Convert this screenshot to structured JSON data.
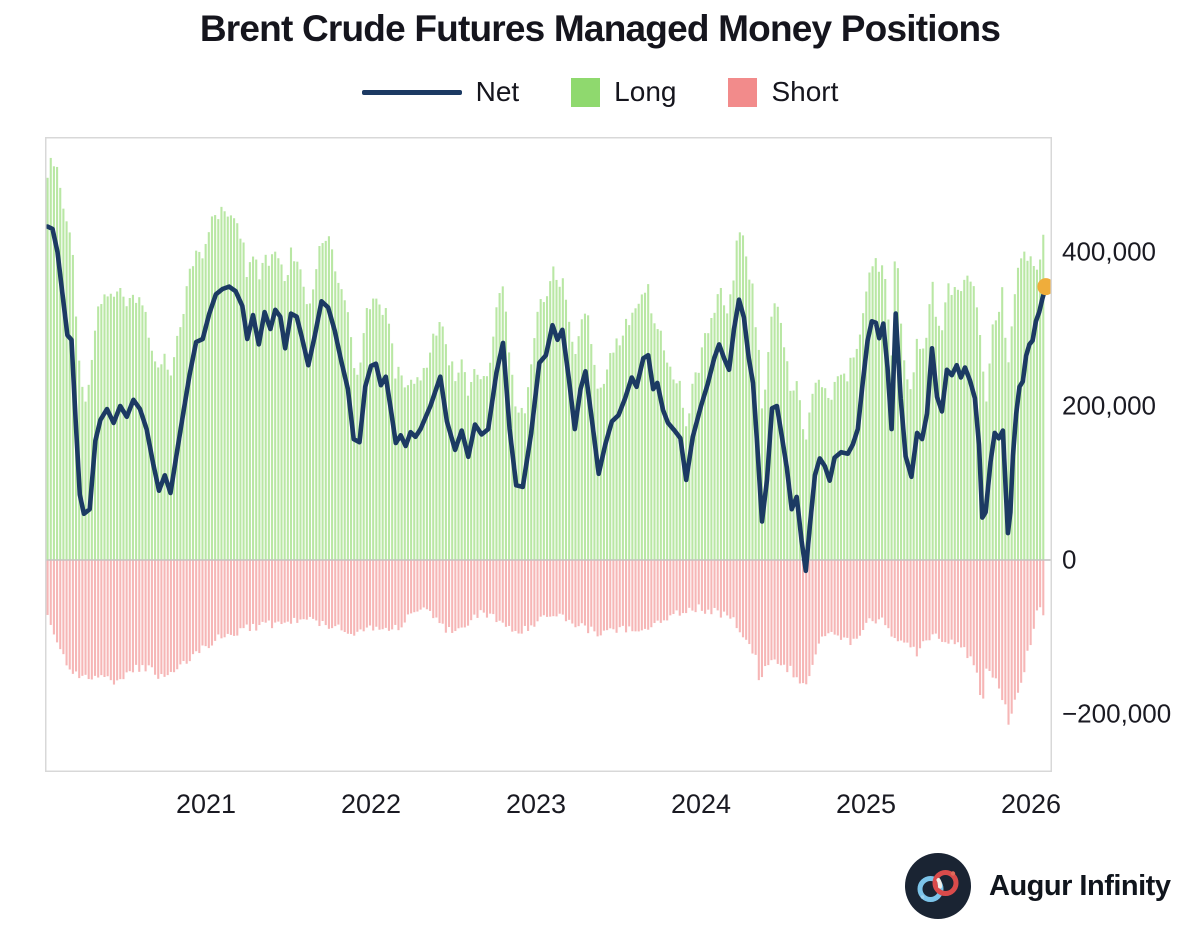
{
  "title": "Brent Crude Futures Managed Money Positions",
  "legend": {
    "net": "Net",
    "long": "Long",
    "short": "Short"
  },
  "colors": {
    "net_line": "#1C3A63",
    "long_bar": "#8FD96E",
    "short_bar": "#F28B8B",
    "latest_dot": "#EFAD3B",
    "zero_line": "#C9C9C9",
    "plot_border": "#D8D8D8",
    "text": "#15151D"
  },
  "y_axis": {
    "ticks": [
      {
        "label": "400,000",
        "value": 400000
      },
      {
        "label": "200,000",
        "value": 200000
      },
      {
        "label": "0",
        "value": 0
      },
      {
        "label": "−200,000",
        "value": -200000
      }
    ]
  },
  "x_axis": {
    "ticks": [
      {
        "label": "2021",
        "value": 2021
      },
      {
        "label": "2022",
        "value": 2022
      },
      {
        "label": "2023",
        "value": 2023
      },
      {
        "label": "2024",
        "value": 2024
      },
      {
        "label": "2025",
        "value": 2025
      },
      {
        "label": "2026",
        "value": 2026
      }
    ]
  },
  "branding": {
    "name": "Augur Infinity"
  },
  "chart_data": {
    "type": "bar+line",
    "title": "Brent Crude Futures Managed Money Positions",
    "x_unit": "decimal year, weekly frequency",
    "value_unit": "contracts",
    "value_scale": 1000,
    "x_range": [
      2020.04,
      2026.09
    ],
    "ylim": [
      -275000,
      549000
    ],
    "grid": "zero line only",
    "legend_position": "top center",
    "series_rule": "long = net + short (short plotted downward as negative bars)",
    "net_line": [
      [
        2020.04,
        433
      ],
      [
        2020.07,
        430
      ],
      [
        2020.1,
        400
      ],
      [
        2020.13,
        345
      ],
      [
        2020.16,
        292
      ],
      [
        2020.185,
        286
      ],
      [
        2020.21,
        180
      ],
      [
        2020.235,
        85
      ],
      [
        2020.26,
        60
      ],
      [
        2020.295,
        66
      ],
      [
        2020.33,
        155
      ],
      [
        2020.36,
        182
      ],
      [
        2020.4,
        196
      ],
      [
        2020.44,
        178
      ],
      [
        2020.48,
        200
      ],
      [
        2020.52,
        186
      ],
      [
        2020.56,
        208
      ],
      [
        2020.6,
        196
      ],
      [
        2020.64,
        170
      ],
      [
        2020.68,
        125
      ],
      [
        2020.715,
        90
      ],
      [
        2020.75,
        110
      ],
      [
        2020.785,
        87
      ],
      [
        2020.82,
        135
      ],
      [
        2020.86,
        188
      ],
      [
        2020.9,
        240
      ],
      [
        2020.94,
        283
      ],
      [
        2020.98,
        287
      ],
      [
        2021.02,
        320
      ],
      [
        2021.06,
        345
      ],
      [
        2021.1,
        352
      ],
      [
        2021.14,
        355
      ],
      [
        2021.18,
        349
      ],
      [
        2021.22,
        330
      ],
      [
        2021.25,
        287
      ],
      [
        2021.285,
        318
      ],
      [
        2021.32,
        280
      ],
      [
        2021.355,
        322
      ],
      [
        2021.39,
        300
      ],
      [
        2021.42,
        325
      ],
      [
        2021.45,
        316
      ],
      [
        2021.48,
        275
      ],
      [
        2021.515,
        320
      ],
      [
        2021.55,
        316
      ],
      [
        2021.58,
        290
      ],
      [
        2021.62,
        253
      ],
      [
        2021.66,
        292
      ],
      [
        2021.7,
        336
      ],
      [
        2021.74,
        328
      ],
      [
        2021.78,
        298
      ],
      [
        2021.82,
        258
      ],
      [
        2021.86,
        222
      ],
      [
        2021.895,
        157
      ],
      [
        2021.93,
        153
      ],
      [
        2021.965,
        225
      ],
      [
        2022.0,
        252
      ],
      [
        2022.03,
        255
      ],
      [
        2022.06,
        227
      ],
      [
        2022.09,
        238
      ],
      [
        2022.12,
        196
      ],
      [
        2022.15,
        152
      ],
      [
        2022.18,
        162
      ],
      [
        2022.21,
        148
      ],
      [
        2022.24,
        166
      ],
      [
        2022.27,
        160
      ],
      [
        2022.3,
        170
      ],
      [
        2022.36,
        200
      ],
      [
        2022.42,
        238
      ],
      [
        2022.46,
        180
      ],
      [
        2022.51,
        143
      ],
      [
        2022.55,
        168
      ],
      [
        2022.59,
        134
      ],
      [
        2022.63,
        176
      ],
      [
        2022.67,
        163
      ],
      [
        2022.71,
        170
      ],
      [
        2022.76,
        243
      ],
      [
        2022.8,
        282
      ],
      [
        2022.84,
        170
      ],
      [
        2022.88,
        97
      ],
      [
        2022.92,
        95
      ],
      [
        2022.97,
        164
      ],
      [
        2023.02,
        256
      ],
      [
        2023.06,
        266
      ],
      [
        2023.1,
        305
      ],
      [
        2023.13,
        286
      ],
      [
        2023.16,
        299
      ],
      [
        2023.2,
        234
      ],
      [
        2023.235,
        170
      ],
      [
        2023.27,
        222
      ],
      [
        2023.3,
        245
      ],
      [
        2023.34,
        180
      ],
      [
        2023.38,
        112
      ],
      [
        2023.42,
        150
      ],
      [
        2023.46,
        180
      ],
      [
        2023.5,
        188
      ],
      [
        2023.54,
        210
      ],
      [
        2023.58,
        237
      ],
      [
        2023.61,
        225
      ],
      [
        2023.65,
        262
      ],
      [
        2023.68,
        266
      ],
      [
        2023.71,
        222
      ],
      [
        2023.735,
        230
      ],
      [
        2023.77,
        195
      ],
      [
        2023.8,
        178
      ],
      [
        2023.84,
        168
      ],
      [
        2023.875,
        158
      ],
      [
        2023.91,
        104
      ],
      [
        2023.95,
        160
      ],
      [
        2024.0,
        200
      ],
      [
        2024.04,
        228
      ],
      [
        2024.08,
        262
      ],
      [
        2024.11,
        280
      ],
      [
        2024.14,
        262
      ],
      [
        2024.17,
        247
      ],
      [
        2024.2,
        300
      ],
      [
        2024.23,
        338
      ],
      [
        2024.26,
        315
      ],
      [
        2024.29,
        262
      ],
      [
        2024.315,
        230
      ],
      [
        2024.34,
        152
      ],
      [
        2024.37,
        50
      ],
      [
        2024.4,
        104
      ],
      [
        2024.43,
        197
      ],
      [
        2024.46,
        200
      ],
      [
        2024.49,
        160
      ],
      [
        2024.52,
        120
      ],
      [
        2024.55,
        66
      ],
      [
        2024.58,
        82
      ],
      [
        2024.61,
        25
      ],
      [
        2024.635,
        -14
      ],
      [
        2024.66,
        45
      ],
      [
        2024.69,
        110
      ],
      [
        2024.72,
        132
      ],
      [
        2024.75,
        122
      ],
      [
        2024.78,
        103
      ],
      [
        2024.81,
        133
      ],
      [
        2024.85,
        140
      ],
      [
        2024.89,
        138
      ],
      [
        2024.92,
        150
      ],
      [
        2024.95,
        170
      ],
      [
        2024.98,
        230
      ],
      [
        2025.01,
        285
      ],
      [
        2025.035,
        310
      ],
      [
        2025.06,
        308
      ],
      [
        2025.08,
        288
      ],
      [
        2025.105,
        307
      ],
      [
        2025.13,
        250
      ],
      [
        2025.155,
        170
      ],
      [
        2025.18,
        320
      ],
      [
        2025.21,
        210
      ],
      [
        2025.24,
        135
      ],
      [
        2025.275,
        108
      ],
      [
        2025.31,
        165
      ],
      [
        2025.34,
        157
      ],
      [
        2025.37,
        190
      ],
      [
        2025.4,
        275
      ],
      [
        2025.43,
        212
      ],
      [
        2025.46,
        193
      ],
      [
        2025.49,
        247
      ],
      [
        2025.52,
        240
      ],
      [
        2025.55,
        253
      ],
      [
        2025.575,
        237
      ],
      [
        2025.6,
        250
      ],
      [
        2025.63,
        233
      ],
      [
        2025.66,
        210
      ],
      [
        2025.685,
        150
      ],
      [
        2025.705,
        55
      ],
      [
        2025.725,
        62
      ],
      [
        2025.755,
        128
      ],
      [
        2025.78,
        165
      ],
      [
        2025.805,
        158
      ],
      [
        2025.83,
        168
      ],
      [
        2025.845,
        100
      ],
      [
        2025.86,
        35
      ],
      [
        2025.875,
        62
      ],
      [
        2025.89,
        135
      ],
      [
        2025.91,
        190
      ],
      [
        2025.93,
        225
      ],
      [
        2025.95,
        232
      ],
      [
        2025.97,
        265
      ],
      [
        2025.99,
        280
      ],
      [
        2026.01,
        285
      ],
      [
        2026.03,
        310
      ],
      [
        2026.05,
        322
      ],
      [
        2026.07,
        340
      ],
      [
        2026.09,
        355
      ]
    ],
    "short_bars": [
      [
        2020.04,
        70
      ],
      [
        2020.1,
        112
      ],
      [
        2020.16,
        135
      ],
      [
        2020.22,
        148
      ],
      [
        2020.3,
        150
      ],
      [
        2020.38,
        155
      ],
      [
        2020.46,
        158
      ],
      [
        2020.54,
        145
      ],
      [
        2020.62,
        138
      ],
      [
        2020.7,
        148
      ],
      [
        2020.78,
        152
      ],
      [
        2020.86,
        138
      ],
      [
        2020.94,
        120
      ],
      [
        2021.02,
        108
      ],
      [
        2021.12,
        98
      ],
      [
        2021.22,
        90
      ],
      [
        2021.32,
        85
      ],
      [
        2021.42,
        83
      ],
      [
        2021.52,
        80
      ],
      [
        2021.62,
        78
      ],
      [
        2021.72,
        82
      ],
      [
        2021.82,
        88
      ],
      [
        2021.92,
        95
      ],
      [
        2022.0,
        85
      ],
      [
        2022.06,
        92
      ],
      [
        2022.12,
        90
      ],
      [
        2022.18,
        85
      ],
      [
        2022.24,
        70
      ],
      [
        2022.3,
        65
      ],
      [
        2022.36,
        72
      ],
      [
        2022.42,
        85
      ],
      [
        2022.48,
        92
      ],
      [
        2022.54,
        85
      ],
      [
        2022.6,
        78
      ],
      [
        2022.66,
        70
      ],
      [
        2022.72,
        72
      ],
      [
        2022.78,
        80
      ],
      [
        2022.84,
        88
      ],
      [
        2022.9,
        95
      ],
      [
        2022.96,
        88
      ],
      [
        2023.02,
        75
      ],
      [
        2023.08,
        68
      ],
      [
        2023.14,
        72
      ],
      [
        2023.2,
        80
      ],
      [
        2023.26,
        85
      ],
      [
        2023.32,
        90
      ],
      [
        2023.38,
        95
      ],
      [
        2023.44,
        92
      ],
      [
        2023.5,
        88
      ],
      [
        2023.56,
        90
      ],
      [
        2023.62,
        95
      ],
      [
        2023.68,
        90
      ],
      [
        2023.74,
        80
      ],
      [
        2023.8,
        72
      ],
      [
        2023.86,
        68
      ],
      [
        2023.92,
        65
      ],
      [
        2023.98,
        62
      ],
      [
        2024.04,
        65
      ],
      [
        2024.1,
        68
      ],
      [
        2024.16,
        72
      ],
      [
        2024.22,
        85
      ],
      [
        2024.28,
        105
      ],
      [
        2024.33,
        125
      ],
      [
        2024.36,
        168
      ],
      [
        2024.39,
        135
      ],
      [
        2024.44,
        130
      ],
      [
        2024.49,
        138
      ],
      [
        2024.54,
        142
      ],
      [
        2024.58,
        152
      ],
      [
        2024.62,
        166
      ],
      [
        2024.66,
        148
      ],
      [
        2024.71,
        105
      ],
      [
        2024.78,
        95
      ],
      [
        2024.84,
        100
      ],
      [
        2024.9,
        105
      ],
      [
        2024.94,
        108
      ],
      [
        2024.98,
        90
      ],
      [
        2025.04,
        75
      ],
      [
        2025.1,
        80
      ],
      [
        2025.15,
        100
      ],
      [
        2025.21,
        100
      ],
      [
        2025.27,
        112
      ],
      [
        2025.31,
        125
      ],
      [
        2025.36,
        105
      ],
      [
        2025.42,
        100
      ],
      [
        2025.48,
        108
      ],
      [
        2025.54,
        110
      ],
      [
        2025.6,
        118
      ],
      [
        2025.65,
        130
      ],
      [
        2025.68,
        145
      ],
      [
        2025.7,
        195
      ],
      [
        2025.73,
        145
      ],
      [
        2025.77,
        152
      ],
      [
        2025.8,
        165
      ],
      [
        2025.83,
        178
      ],
      [
        2025.85,
        190
      ],
      [
        2025.87,
        228
      ],
      [
        2025.89,
        185
      ],
      [
        2025.92,
        175
      ],
      [
        2025.95,
        152
      ],
      [
        2025.98,
        115
      ],
      [
        2026.01,
        100
      ],
      [
        2026.04,
        62
      ],
      [
        2026.07,
        70
      ],
      [
        2026.09,
        62
      ]
    ],
    "end_marker": {
      "x": 2026.09,
      "value": 355,
      "series": "net"
    }
  }
}
